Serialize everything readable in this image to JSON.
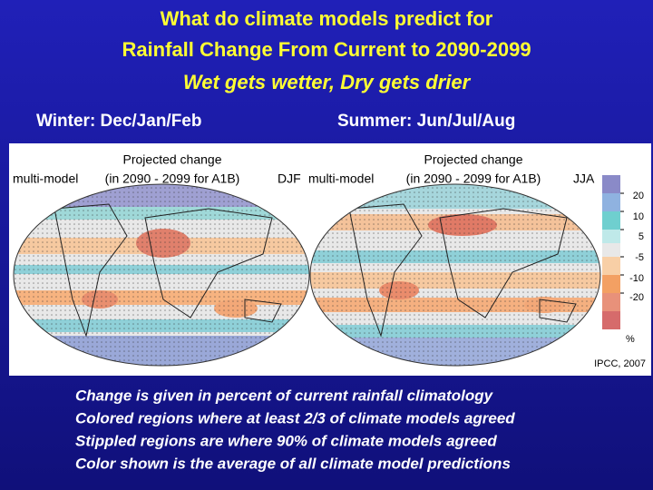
{
  "header": {
    "title_lines": [
      "What do climate models predict for",
      "Rainfall Change From Current to 2090-2099"
    ],
    "subtitle": "Wet gets wetter, Dry gets drier"
  },
  "panels": [
    {
      "label": "Winter: Dec/Jan/Feb",
      "model": "multi-model",
      "heading": "Projected change",
      "period": "(in 2090 - 2099 for A1B)",
      "season": "DJF"
    },
    {
      "label": "Summer: Jun/Jul/Aug",
      "model": "multi-model",
      "heading": "Projected change",
      "period": "(in 2090 - 2099 for A1B)",
      "season": "JJA"
    }
  ],
  "legend": {
    "ticks": [
      20,
      10,
      5,
      -5,
      -10,
      -20
    ],
    "unit": "%"
  },
  "source": "IPCC, 2007",
  "notes": [
    "Change is given in percent of current rainfall climatology",
    "Colored regions where at least 2/3 of climate models agreed",
    "Stippled regions are where 90% of climate models agreed",
    "Color shown is the average of all climate model predictions"
  ]
}
